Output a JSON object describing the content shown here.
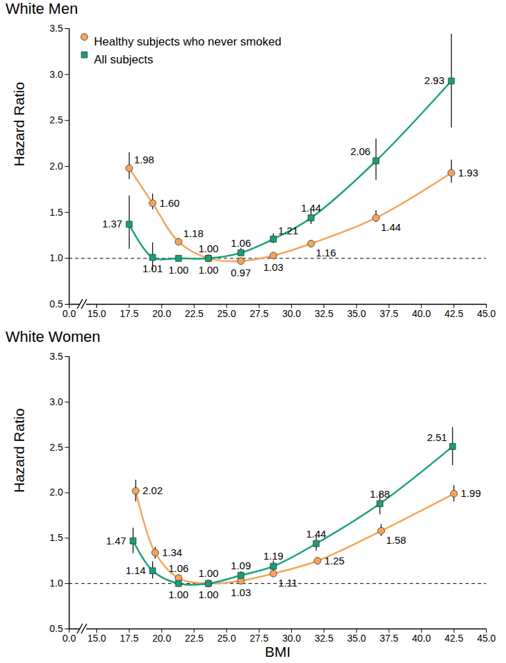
{
  "chart_data": [
    {
      "type": "line",
      "title": "White Men",
      "ylabel": "Hazard Ratio",
      "xlim": [
        0,
        45
      ],
      "xticks": [
        {
          "value": 0,
          "label": "0.0"
        },
        {
          "value": 15,
          "label": "15.0"
        },
        17.5,
        {
          "value": 20,
          "label": "20.0"
        },
        22.5,
        {
          "value": 25,
          "label": "25.0"
        },
        27.5,
        {
          "value": 30,
          "label": "30.0"
        },
        32.5,
        {
          "value": 35,
          "label": "35.0"
        },
        37.5,
        {
          "value": 40,
          "label": "40.0"
        },
        42.5,
        {
          "value": 45,
          "label": "45.0"
        }
      ],
      "ylim": [
        0.5,
        3.5
      ],
      "yticks": [
        0.5,
        {
          "value": 1,
          "label": "1.0"
        },
        1.5,
        {
          "value": 2,
          "label": "2.0"
        },
        2.5,
        {
          "value": 3,
          "label": "3.0"
        },
        3.5
      ],
      "reference_line": 1,
      "grid": false,
      "legend": "top-left",
      "data_labels": true,
      "series": [
        {
          "name": "Healthy subjects who never smoked",
          "color": "#F5A55A",
          "marker": "circle",
          "x": [
            17.5,
            19.3,
            21.3,
            23.6,
            26.1,
            28.6,
            31.5,
            36.5,
            42.3
          ],
          "values": [
            1.98,
            1.6,
            1.18,
            1.0,
            0.97,
            1.03,
            1.16,
            1.44,
            1.93
          ],
          "value_labels": [
            "1.98",
            "1.60",
            "1.18",
            "1.00",
            "0.97",
            "1.03",
            "1.16",
            "1.44",
            "1.93"
          ],
          "lower": [
            1.86,
            1.53,
            1.15,
            null,
            0.95,
            1.0,
            1.13,
            1.39,
            1.82
          ],
          "upper": [
            2.15,
            1.7,
            1.22,
            null,
            0.99,
            1.06,
            1.19,
            1.52,
            2.07
          ]
        },
        {
          "name": "All subjects",
          "color": "#17A078",
          "marker": "square",
          "x": [
            17.5,
            19.3,
            21.3,
            23.6,
            26.1,
            28.6,
            31.5,
            36.5,
            42.3
          ],
          "values": [
            1.37,
            1.01,
            1.0,
            1.0,
            1.06,
            1.21,
            1.44,
            2.06,
            2.93
          ],
          "value_labels": [
            "1.37",
            "1.01",
            "1.00",
            "1.00",
            "1.06",
            "1.21",
            "1.44",
            "2.06",
            "2.93"
          ],
          "lower": [
            1.1,
            0.87,
            0.98,
            null,
            1.03,
            1.16,
            1.37,
            1.85,
            2.42
          ],
          "upper": [
            1.68,
            1.17,
            1.02,
            null,
            1.11,
            1.27,
            1.53,
            2.3,
            3.44
          ]
        }
      ]
    },
    {
      "type": "line",
      "title": "White Women",
      "ylabel": "Hazard Ratio",
      "xlabel": "BMI",
      "xlim": [
        0,
        45
      ],
      "xticks": [
        {
          "value": 0,
          "label": "0.0"
        },
        {
          "value": 15,
          "label": "15.0"
        },
        17.5,
        {
          "value": 20,
          "label": "20.0"
        },
        22.5,
        {
          "value": 25,
          "label": "25.0"
        },
        27.5,
        {
          "value": 30,
          "label": "30.0"
        },
        32.5,
        {
          "value": 35,
          "label": "35.0"
        },
        37.5,
        {
          "value": 40,
          "label": "40.0"
        },
        42.5,
        {
          "value": 45,
          "label": "45.0"
        }
      ],
      "ylim": [
        0.5,
        3.5
      ],
      "yticks": [
        0.5,
        {
          "value": 1,
          "label": "1.0"
        },
        1.5,
        {
          "value": 2,
          "label": "2.0"
        },
        2.5,
        {
          "value": 3,
          "label": "3.0"
        },
        3.5
      ],
      "reference_line": 1,
      "grid": false,
      "data_labels": true,
      "series": [
        {
          "name": "Healthy subjects who never smoked",
          "color": "#F5A55A",
          "marker": "circle",
          "x": [
            18.0,
            19.5,
            21.3,
            23.6,
            26.1,
            28.6,
            32.0,
            36.9,
            42.5
          ],
          "values": [
            2.02,
            1.34,
            1.06,
            1.0,
            1.03,
            1.11,
            1.25,
            1.58,
            1.99
          ],
          "value_labels": [
            "2.02",
            "1.34",
            "1.06",
            "1.00",
            "1.03",
            "1.11",
            "1.25",
            "1.58",
            "1.99"
          ],
          "lower": [
            1.9,
            1.27,
            1.02,
            null,
            1.01,
            1.08,
            1.21,
            1.52,
            1.9
          ],
          "upper": [
            2.14,
            1.4,
            1.1,
            null,
            1.05,
            1.14,
            1.29,
            1.65,
            2.08
          ]
        },
        {
          "name": "All subjects",
          "color": "#17A078",
          "marker": "square",
          "x": [
            17.8,
            19.3,
            21.3,
            23.6,
            26.1,
            28.6,
            31.9,
            36.8,
            42.4
          ],
          "values": [
            1.47,
            1.14,
            1.0,
            1.0,
            1.09,
            1.19,
            1.44,
            1.88,
            2.51
          ],
          "value_labels": [
            "1.47",
            "1.14",
            "1.00",
            "1.00",
            "1.09",
            "1.19",
            "1.44",
            "1.88",
            "2.51"
          ],
          "lower": [
            1.33,
            1.05,
            0.96,
            null,
            1.05,
            1.13,
            1.36,
            1.76,
            2.3
          ],
          "upper": [
            1.61,
            1.24,
            1.04,
            null,
            1.13,
            1.25,
            1.53,
            2.0,
            2.72
          ]
        }
      ]
    }
  ]
}
